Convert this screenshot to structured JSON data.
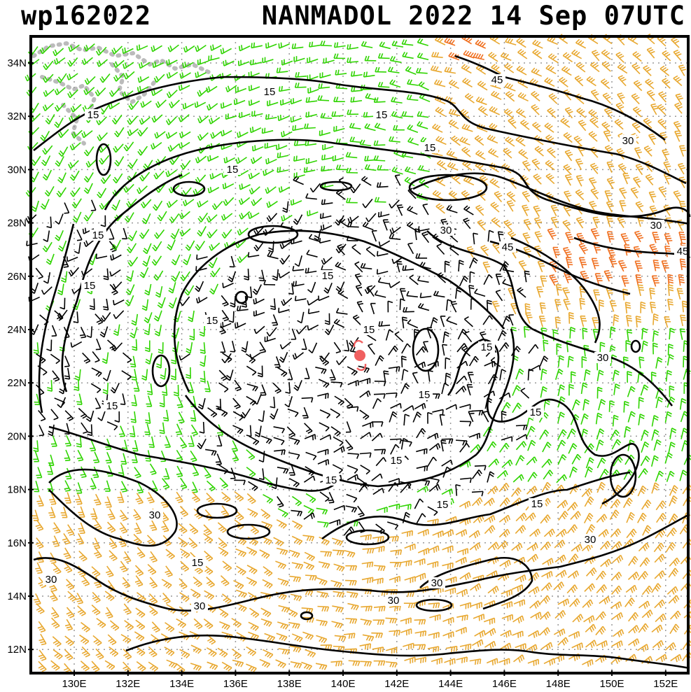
{
  "header": {
    "storm_id": "wp162022",
    "title": "NANMADOL 2022 14 Sep 07UTC"
  },
  "axes": {
    "lat_labels": [
      "34N",
      "32N",
      "30N",
      "28N",
      "26N",
      "24N",
      "22N",
      "20N",
      "18N",
      "16N",
      "14N",
      "12N"
    ],
    "lon_labels": [
      "130E",
      "132E",
      "134E",
      "136E",
      "138E",
      "140E",
      "142E",
      "144E",
      "146E",
      "148E",
      "150E",
      "152E"
    ]
  },
  "contour_labels": [
    "15",
    "15",
    "15",
    "15",
    "15",
    "15",
    "15",
    "15",
    "15",
    "15",
    "15",
    "15",
    "15",
    "15",
    "15",
    "15",
    "15",
    "15",
    "15",
    "30",
    "30",
    "30",
    "30",
    "30",
    "30",
    "30",
    "30",
    "30",
    "30",
    "30",
    "45",
    "45",
    "45"
  ],
  "colors": {
    "frame": "#000000",
    "grid": "#999999",
    "land": "#bbbbbb",
    "barb_weak": "#000000",
    "barb_moderate": "#2fd400",
    "barb_strong": "#e8a830",
    "barb_very_strong": "#f07020",
    "storm_center": "#f06060"
  },
  "storm_center_icon": "tropical-cyclone-symbol"
}
